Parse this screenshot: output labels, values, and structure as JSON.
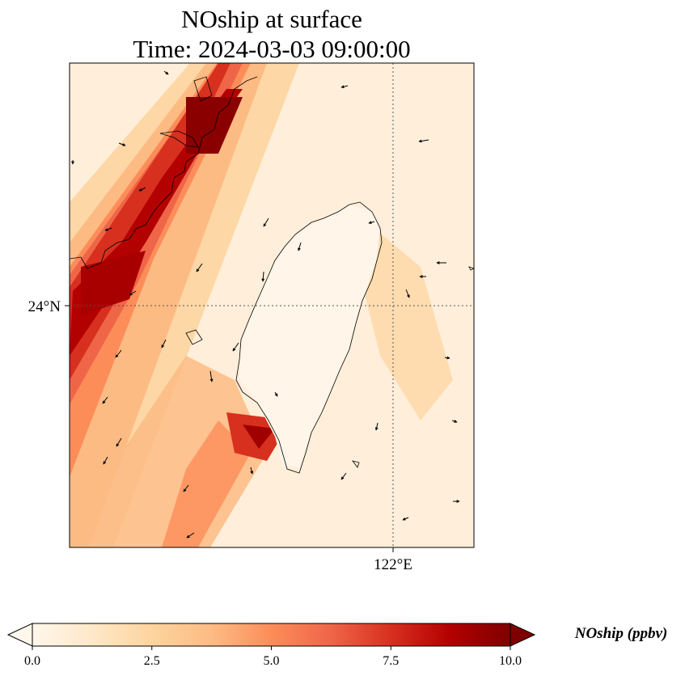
{
  "figure": {
    "title_line1": "NOship at surface",
    "title_line2": "Time: 2024-03-03 09:00:00"
  },
  "map": {
    "region": "Taiwan Strait",
    "lat_ticks": [
      {
        "value": 24.0,
        "label": "24°N"
      }
    ],
    "lon_ticks": [
      {
        "value": 122.0,
        "label": "122°E"
      }
    ],
    "gridlines": "dotted",
    "features": [
      "coastline",
      "wind-vectors"
    ]
  },
  "colorbar": {
    "label": "NOship (ppbv)",
    "colormap": "OrRd",
    "min": 0.0,
    "max": 10.0,
    "extend": "both",
    "ticks": [
      "0.0",
      "2.5",
      "5.0",
      "7.5",
      "10.0"
    ],
    "colors": [
      "#fff7ec",
      "#fee8c8",
      "#fdd49e",
      "#fdbb84",
      "#fc8d59",
      "#ef6548",
      "#d7301f",
      "#b30000",
      "#7f0000"
    ]
  }
}
